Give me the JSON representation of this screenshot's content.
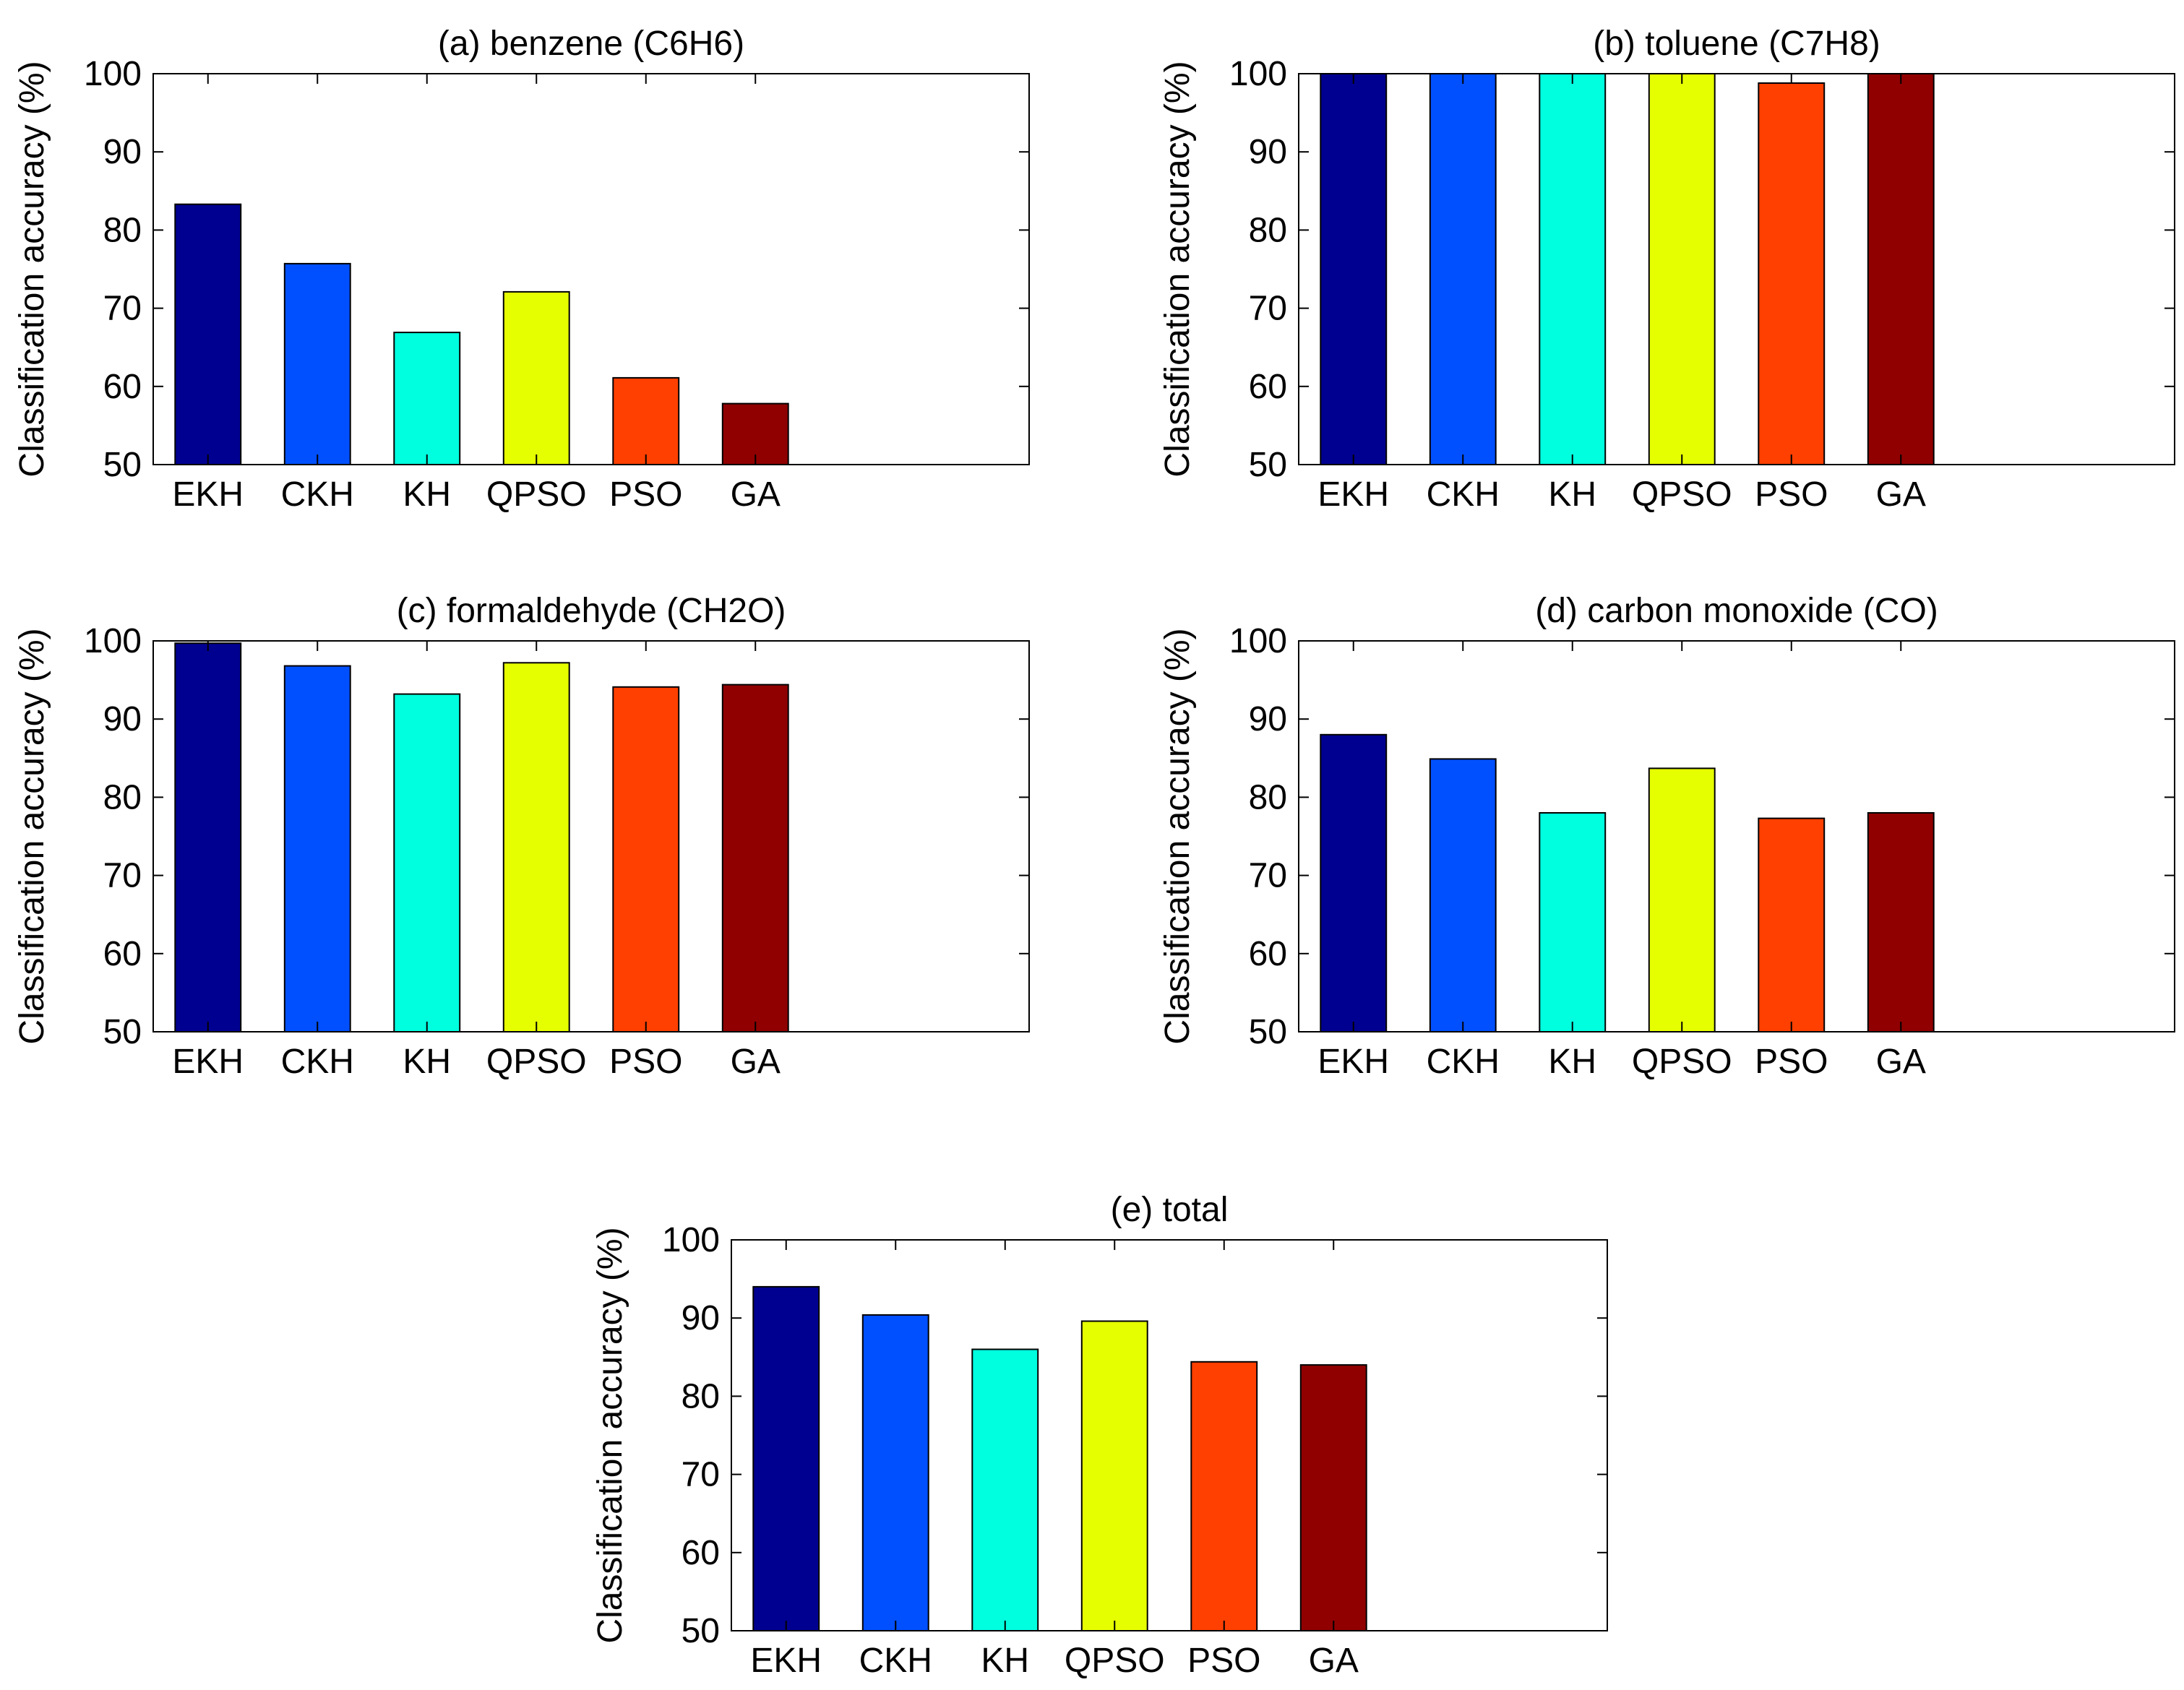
{
  "chart_data": [
    {
      "type": "bar",
      "title": "(a) benzene (C6H6)",
      "categories": [
        "EKH",
        "CKH",
        "KH",
        "QPSO",
        "PSO",
        "GA"
      ],
      "values": [
        83.3,
        75.7,
        66.9,
        72.1,
        61.1,
        57.8
      ],
      "xlabel": "",
      "ylabel": "Classification accuracy (%)",
      "ylim": [
        50,
        100
      ],
      "yticks": [
        50,
        60,
        70,
        80,
        90,
        100
      ],
      "xlim": [
        0.5,
        8.5
      ],
      "grid": false,
      "colors": [
        "#000090",
        "#0050ff",
        "#00ffdf",
        "#e6ff00",
        "#ff4000",
        "#900000"
      ]
    },
    {
      "type": "bar",
      "title": "(b) toluene (C7H8)",
      "categories": [
        "EKH",
        "CKH",
        "KH",
        "QPSO",
        "PSO",
        "GA"
      ],
      "values": [
        100,
        100,
        100,
        100,
        98.8,
        100
      ],
      "xlabel": "",
      "ylabel": "Classification accuracy (%)",
      "ylim": [
        50,
        100
      ],
      "yticks": [
        50,
        60,
        70,
        80,
        90,
        100
      ],
      "xlim": [
        0.5,
        8.5
      ],
      "grid": false,
      "colors": [
        "#000090",
        "#0050ff",
        "#00ffdf",
        "#e6ff00",
        "#ff4000",
        "#900000"
      ]
    },
    {
      "type": "bar",
      "title": "(c) formaldehyde (CH2O)",
      "categories": [
        "EKH",
        "CKH",
        "KH",
        "QPSO",
        "PSO",
        "GA"
      ],
      "values": [
        99.7,
        96.8,
        93.2,
        97.2,
        94.1,
        94.4
      ],
      "xlabel": "",
      "ylabel": "Classification accuracy (%)",
      "ylim": [
        50,
        100
      ],
      "yticks": [
        50,
        60,
        70,
        80,
        90,
        100
      ],
      "xlim": [
        0.5,
        8.5
      ],
      "grid": false,
      "colors": [
        "#000090",
        "#0050ff",
        "#00ffdf",
        "#e6ff00",
        "#ff4000",
        "#900000"
      ]
    },
    {
      "type": "bar",
      "title": "(d) carbon monoxide (CO)",
      "categories": [
        "EKH",
        "CKH",
        "KH",
        "QPSO",
        "PSO",
        "GA"
      ],
      "values": [
        88.0,
        84.9,
        78.0,
        83.7,
        77.3,
        78.0
      ],
      "xlabel": "",
      "ylabel": "Classification accuracy (%)",
      "ylim": [
        50,
        100
      ],
      "yticks": [
        50,
        60,
        70,
        80,
        90,
        100
      ],
      "xlim": [
        0.5,
        8.5
      ],
      "grid": false,
      "colors": [
        "#000090",
        "#0050ff",
        "#00ffdf",
        "#e6ff00",
        "#ff4000",
        "#900000"
      ]
    },
    {
      "type": "bar",
      "title": "(e) total",
      "categories": [
        "EKH",
        "CKH",
        "KH",
        "QPSO",
        "PSO",
        "GA"
      ],
      "values": [
        94.0,
        90.4,
        86.0,
        89.6,
        84.4,
        84.0
      ],
      "xlabel": "",
      "ylabel": "Classification accuracy (%)",
      "ylim": [
        50,
        100
      ],
      "yticks": [
        50,
        60,
        70,
        80,
        90,
        100
      ],
      "xlim": [
        0.5,
        8.5
      ],
      "grid": false,
      "colors": [
        "#000090",
        "#0050ff",
        "#00ffdf",
        "#e6ff00",
        "#ff4000",
        "#900000"
      ]
    }
  ]
}
